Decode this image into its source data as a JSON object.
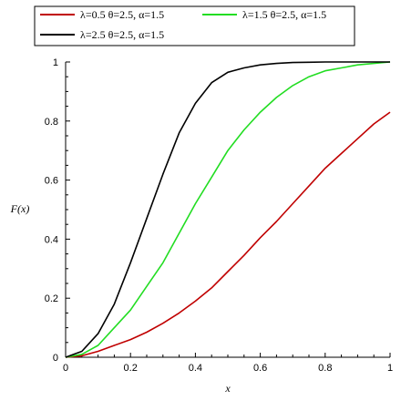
{
  "chart_data": {
    "type": "line",
    "xlabel": "x",
    "ylabel": "F(x)",
    "xlim": [
      0,
      1
    ],
    "ylim": [
      0,
      1
    ],
    "x_ticks": [
      "0",
      "0.2",
      "0.4",
      "0.6",
      "0.8",
      "1"
    ],
    "y_ticks": [
      "0",
      "0.2",
      "0.4",
      "0.6",
      "0.8",
      "1"
    ],
    "grid": false,
    "legend": "top",
    "series": [
      {
        "name": "λ=0.5 θ=2.5, α=1.5",
        "color": "#c00000",
        "x": [
          0,
          0.05,
          0.1,
          0.15,
          0.2,
          0.25,
          0.3,
          0.35,
          0.4,
          0.45,
          0.5,
          0.55,
          0.6,
          0.65,
          0.7,
          0.75,
          0.8,
          0.85,
          0.9,
          0.95,
          1.0
        ],
        "y": [
          0,
          0.005,
          0.02,
          0.04,
          0.06,
          0.085,
          0.115,
          0.15,
          0.19,
          0.235,
          0.29,
          0.345,
          0.405,
          0.46,
          0.52,
          0.58,
          0.64,
          0.69,
          0.74,
          0.79,
          0.83
        ]
      },
      {
        "name": "λ=1.5 θ=2.5, α=1.5",
        "color": "#22dd22",
        "x": [
          0,
          0.05,
          0.1,
          0.15,
          0.2,
          0.25,
          0.3,
          0.35,
          0.4,
          0.45,
          0.5,
          0.55,
          0.6,
          0.65,
          0.7,
          0.75,
          0.8,
          0.85,
          0.9,
          0.95,
          1.0
        ],
        "y": [
          0,
          0.01,
          0.04,
          0.1,
          0.16,
          0.24,
          0.32,
          0.42,
          0.52,
          0.61,
          0.7,
          0.77,
          0.83,
          0.88,
          0.92,
          0.95,
          0.97,
          0.98,
          0.99,
          0.995,
          1.0
        ]
      },
      {
        "name": "λ=2.5 θ=2.5, α=1.5",
        "color": "#000000",
        "x": [
          0,
          0.05,
          0.1,
          0.15,
          0.2,
          0.25,
          0.3,
          0.35,
          0.4,
          0.45,
          0.5,
          0.55,
          0.6,
          0.65,
          0.7,
          0.75,
          0.8,
          0.85,
          0.9,
          0.95,
          1.0
        ],
        "y": [
          0,
          0.02,
          0.08,
          0.18,
          0.32,
          0.47,
          0.62,
          0.76,
          0.86,
          0.93,
          0.965,
          0.98,
          0.99,
          0.995,
          0.998,
          0.999,
          1.0,
          1.0,
          1.0,
          1.0,
          1.0
        ]
      }
    ]
  }
}
